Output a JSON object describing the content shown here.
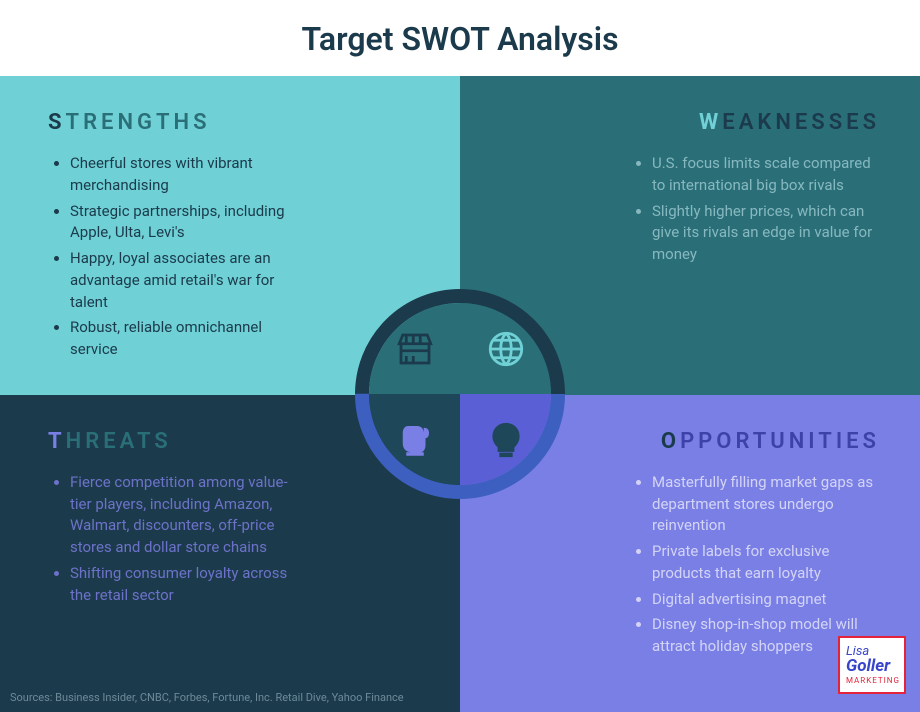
{
  "title": "Target SWOT Analysis",
  "title_color": "#1b3a4b",
  "sources": "Sources: Business Insider, CNBC, Forbes, Fortune, Inc. Retail Dive, Yahoo Finance",
  "sources_color": "#6d8a99",
  "logo": {
    "line1": "Lisa",
    "line2": "Goller",
    "line3": "MARKETING",
    "border_color": "#e3233a",
    "text_color": "#3845c9",
    "line3_color": "#e3233a"
  },
  "center": {
    "ring_border_tl": "#1b3a4b",
    "ring_border_tr": "#1b3a4b",
    "ring_border_br": "#3d5fbf",
    "ring_border_bl": "#3d5fbf",
    "inner_tl_bg": "#2a6f78",
    "inner_tr_bg": "#2a6f78",
    "inner_bl_bg": "#1f475a",
    "inner_br_bg": "#5a5fd6",
    "icon_tl_color": "#1b3a4b",
    "icon_tr_color": "#6fd1d6",
    "icon_bl_color": "#7a7fe6",
    "icon_br_color": "#1f475a"
  },
  "quadrants": {
    "tl": {
      "letter": "S",
      "rest": "TRENGTHS",
      "bg": "#6fd1d6",
      "letter_color": "#1b3a4b",
      "rest_color": "#2a6f78",
      "text_color": "#1b3a4b",
      "pointer_color": "#6fd1d6",
      "items": [
        "Cheerful stores with vibrant merchandising",
        "Strategic partnerships, including Apple, Ulta, Levi's",
        "Happy, loyal associates are an advantage amid retail's war for talent",
        "Robust, reliable omnichannel service"
      ]
    },
    "tr": {
      "letter": "W",
      "rest": "EAKNESSES",
      "bg": "#2a6f78",
      "letter_color": "#6fd1d6",
      "rest_color": "#1b3a4b",
      "text_color": "#87b8bf",
      "pointer_color": "#2a6f78",
      "items": [
        "U.S. focus limits scale compared to international big box rivals",
        "Slightly higher prices, which can give its rivals an edge in value for money"
      ]
    },
    "bl": {
      "letter": "T",
      "rest": "HREATS",
      "bg": "#1b3a4b",
      "letter_color": "#7a7fe6",
      "rest_color": "#2a6f78",
      "text_color": "#6d72c9",
      "pointer_color": "#1b3a4b",
      "items": [
        "Fierce competition among value-tier players, including Amazon, Walmart, discounters, off-price stores and dollar store chains",
        "Shifting consumer loyalty across the retail sector"
      ]
    },
    "br": {
      "letter": "O",
      "rest": "PPORTUNITIES",
      "bg": "#7a7fe6",
      "letter_color": "#1b3a4b",
      "rest_color": "#3d42a8",
      "text_color": "#d3d4f5",
      "pointer_color": "#7a7fe6",
      "items": [
        "Masterfully filling market gaps as department stores undergo reinvention",
        "Private labels for exclusive products that earn loyalty",
        "Digital advertising magnet",
        "Disney shop-in-shop model will attract holiday shoppers"
      ]
    }
  }
}
